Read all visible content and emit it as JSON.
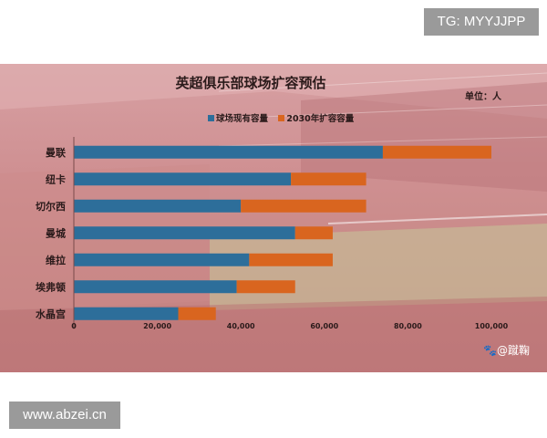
{
  "tag_badge": "TG: MYYJJPP",
  "url_badge": "www.abzei.cn",
  "watermark": "🐾@蹴鞠",
  "chart_data": {
    "type": "bar",
    "orientation": "horizontal",
    "stacked": true,
    "title": "英超俱乐部球场扩容预估",
    "unit": "单位：人",
    "categories": [
      "曼联",
      "纽卡",
      "切尔西",
      "曼城",
      "维拉",
      "埃弗顿",
      "水晶宫"
    ],
    "series": [
      {
        "name": "球场现有容量",
        "color": "#2d6e9a",
        "values": [
          74000,
          52000,
          40000,
          53000,
          42000,
          39000,
          25000
        ]
      },
      {
        "name": "2030年扩容容量",
        "color": "#d9651f",
        "values": [
          26000,
          18000,
          30000,
          9000,
          20000,
          14000,
          9000
        ]
      }
    ],
    "xlim": [
      0,
      100000
    ],
    "ticks": [
      "0",
      "20,000",
      "40,000",
      "60,000",
      "80,000",
      "100,000"
    ],
    "legend_position": "top",
    "grid": false
  }
}
